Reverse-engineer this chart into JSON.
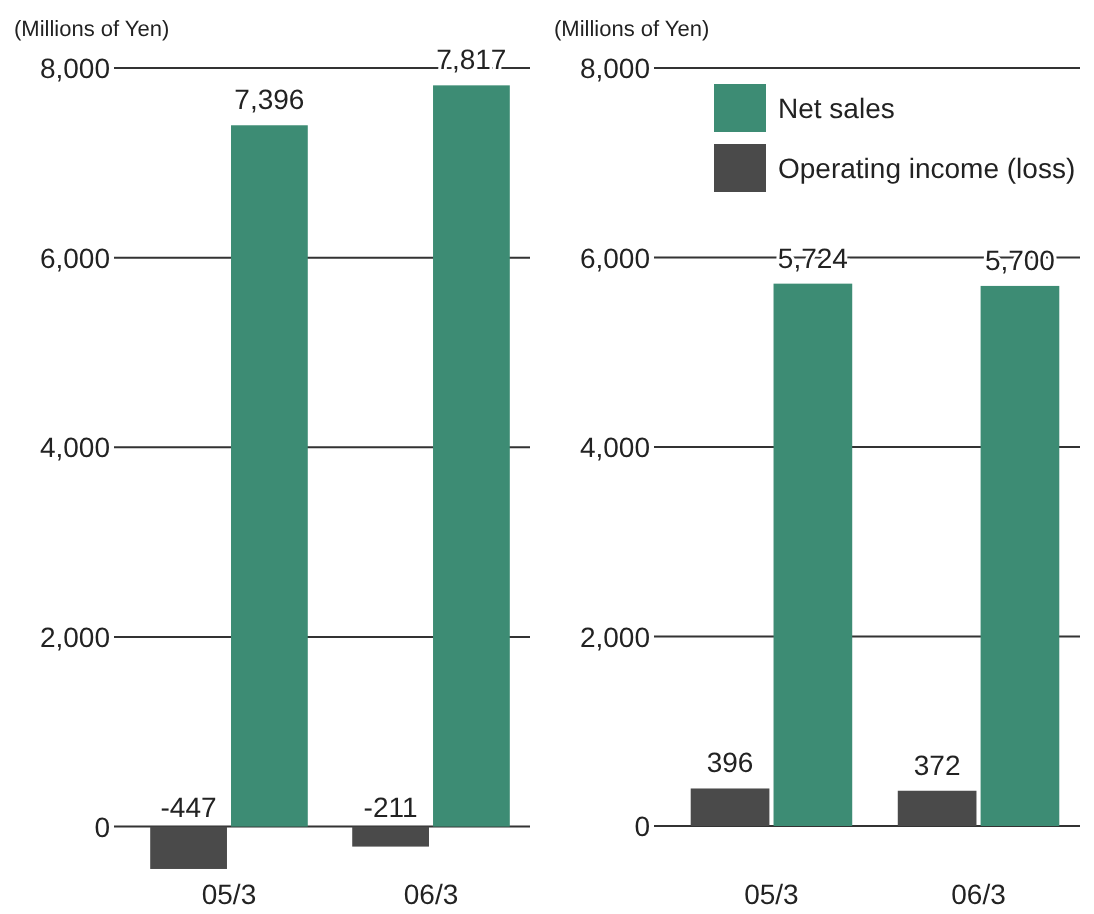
{
  "chart_data": [
    {
      "type": "bar",
      "ylabel": "(Millions of Yen)",
      "categories": [
        "05/3",
        "06/3"
      ],
      "ylim": [
        -500,
        8000
      ],
      "yticks": [
        0,
        {
          "value": 2000,
          "label": "2,000"
        },
        {
          "value": 4000,
          "label": "4,000"
        },
        {
          "value": 6000,
          "label": "6,000"
        },
        {
          "value": 8000,
          "label": "8,000"
        }
      ],
      "grid": "y",
      "data_labels": true,
      "legend": false,
      "series": [
        {
          "color": "#4a4a4a",
          "values": [
            -447,
            -211
          ],
          "value_labels": [
            "-447",
            "-211"
          ]
        },
        {
          "color": "#3d8c74",
          "values": [
            7396,
            7817
          ],
          "value_labels": [
            "7,396",
            "7,817"
          ]
        }
      ]
    },
    {
      "type": "bar",
      "ylabel": "(Millions of Yen)",
      "categories": [
        "05/3",
        "06/3"
      ],
      "ylim": [
        0,
        8000
      ],
      "yticks": [
        0,
        {
          "value": 2000,
          "label": "2,000"
        },
        {
          "value": 4000,
          "label": "4,000"
        },
        {
          "value": 6000,
          "label": "6,000"
        },
        {
          "value": 8000,
          "label": "8,000"
        }
      ],
      "grid": "y",
      "data_labels": true,
      "legend": "top right",
      "series": [
        {
          "name": "Operating income (loss)",
          "color": "#4a4a4a",
          "values": [
            396,
            372
          ],
          "value_labels": [
            "396",
            "372"
          ]
        },
        {
          "name": "Net sales",
          "color": "#3d8c74",
          "values": [
            5724,
            5700
          ],
          "value_labels": [
            "5,724",
            "5,700"
          ]
        }
      ]
    }
  ]
}
